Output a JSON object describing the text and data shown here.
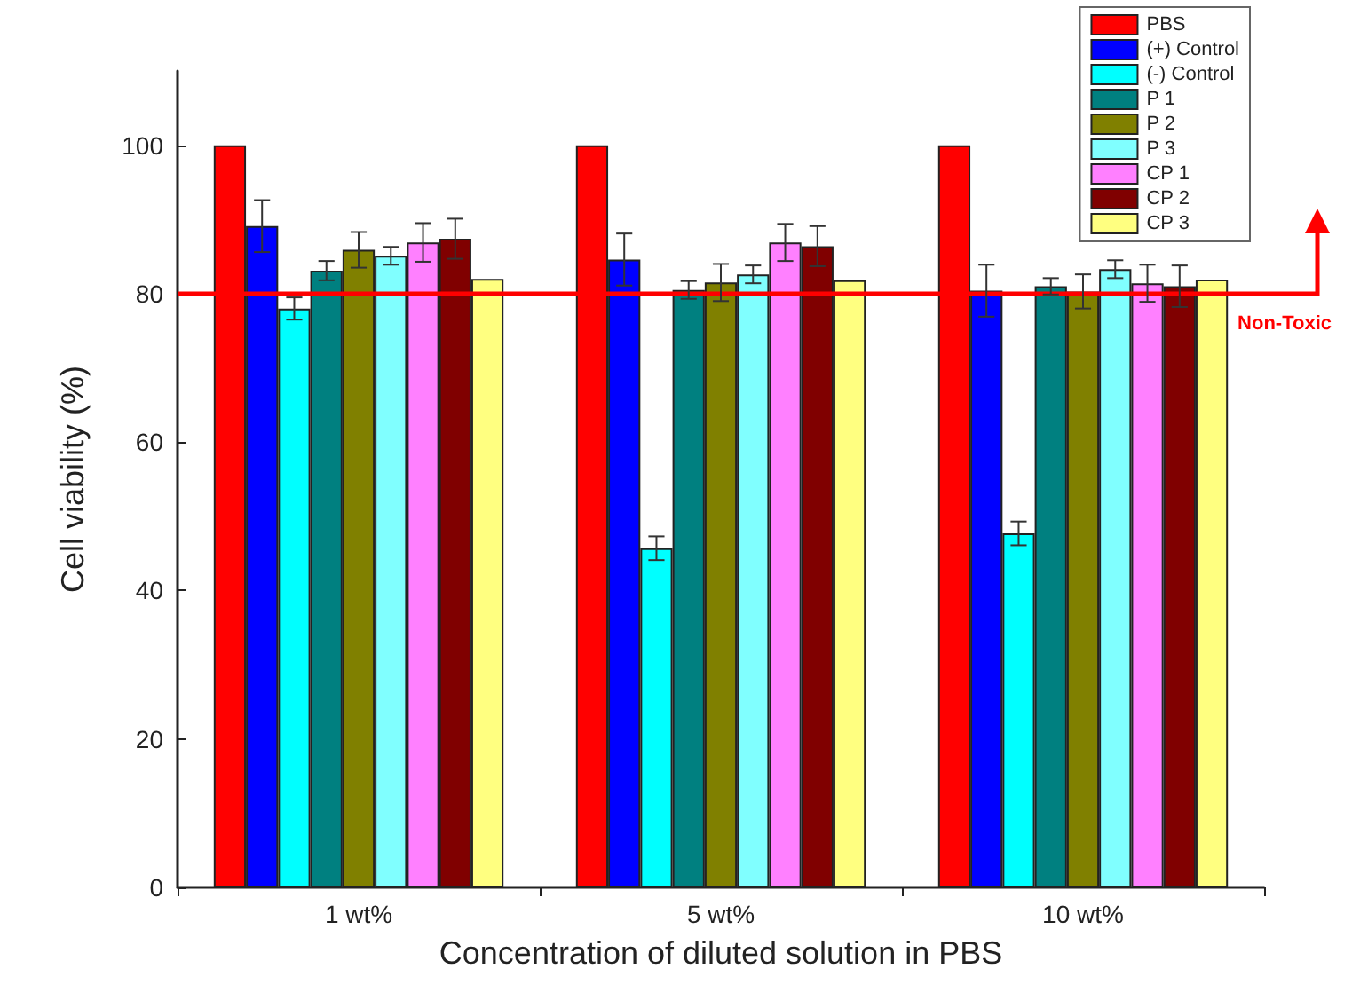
{
  "chart_data": {
    "type": "bar",
    "xlabel": "Concentration of diluted solution in PBS",
    "ylabel": "Cell viability (%)",
    "categories": [
      "1 wt%",
      "5 wt%",
      "10 wt%"
    ],
    "series": [
      {
        "name": "PBS",
        "color": "#ff0000",
        "values": [
          100,
          100,
          100
        ]
      },
      {
        "name": "(+) Control",
        "color": "#0000ff",
        "values": [
          89.1,
          84.6,
          80.4
        ],
        "errors": [
          3.5,
          3.5,
          3.5
        ]
      },
      {
        "name": "(-) Control",
        "color": "#00ffff",
        "values": [
          78.0,
          45.7,
          47.7
        ],
        "errors": [
          1.5,
          1.6,
          1.6
        ]
      },
      {
        "name": "P 1",
        "color": "#008080",
        "values": [
          83.1,
          80.5,
          81.0
        ],
        "errors": [
          1.3,
          1.2,
          1.1
        ]
      },
      {
        "name": "P 2",
        "color": "#808000",
        "values": [
          85.9,
          81.5,
          80.3
        ],
        "errors": [
          2.4,
          2.5,
          2.3
        ]
      },
      {
        "name": "P 3",
        "color": "#80ffff",
        "values": [
          85.1,
          82.6,
          83.3
        ],
        "errors": [
          1.2,
          1.2,
          1.2
        ]
      },
      {
        "name": "CP 1",
        "color": "#ff80ff",
        "values": [
          86.9,
          86.9,
          81.4
        ],
        "errors": [
          2.6,
          2.5,
          2.5
        ]
      },
      {
        "name": "CP 2",
        "color": "#800000",
        "values": [
          87.4,
          86.4,
          81.0
        ],
        "errors": [
          2.7,
          2.7,
          2.8
        ]
      },
      {
        "name": "CP 3",
        "color": "#ffff80",
        "values": [
          82,
          81.8,
          81.9
        ]
      }
    ],
    "ylim": [
      0,
      110
    ],
    "yticks": [
      0,
      20,
      40,
      60,
      80,
      100
    ],
    "grid": false,
    "legend": "top right",
    "ref_lines": [
      {
        "axis": "y",
        "value": 80,
        "label": "Non-Toxic",
        "color": "#ff0000"
      }
    ]
  }
}
